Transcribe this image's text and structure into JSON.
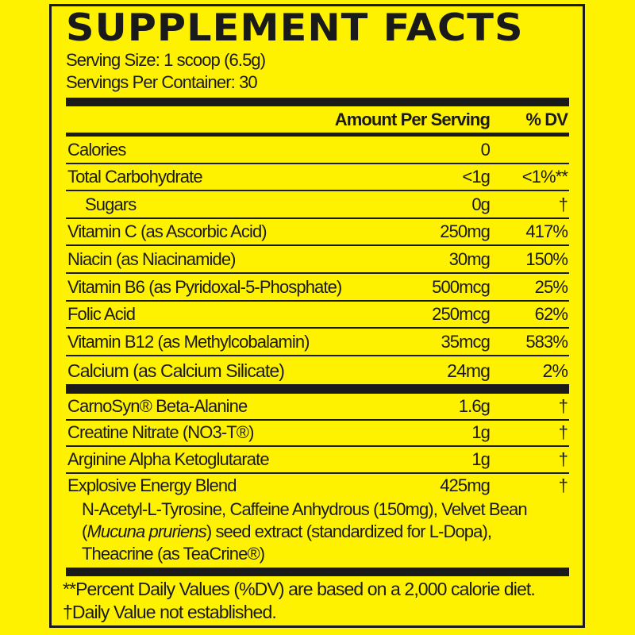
{
  "title": "SUPPLEMENT FACTS",
  "serving_size": "Serving Size: 1 scoop (6.5g)",
  "servings_per_container": "Servings Per Container: 30",
  "header": {
    "amount": "Amount Per Serving",
    "dv": "% DV"
  },
  "nutrients": [
    {
      "name": "Calories",
      "amount": "0",
      "dv": ""
    },
    {
      "name": "Total Carbohydrate",
      "amount": "<1g",
      "dv": "<1%**"
    },
    {
      "name": "Sugars",
      "amount": "0g",
      "dv": "†",
      "indent": true
    },
    {
      "name": "Vitamin C (as Ascorbic Acid)",
      "amount": "250mg",
      "dv": "417%"
    },
    {
      "name": "Niacin (as Niacinamide)",
      "amount": "30mg",
      "dv": "150%"
    },
    {
      "name": "Vitamin B6 (as Pyridoxal-5-Phosphate)",
      "amount": "500mcg",
      "dv": "25%"
    },
    {
      "name": "Folic Acid",
      "amount": "250mcg",
      "dv": "62%"
    },
    {
      "name": "Vitamin B12 (as Methylcobalamin)",
      "amount": "35mcg",
      "dv": "583%"
    },
    {
      "name": "Calcium (as Calcium Silicate)",
      "amount": "24mg",
      "dv": "2%"
    }
  ],
  "ingredients": [
    {
      "name": "CarnoSyn® Beta-Alanine",
      "amount": "1.6g",
      "dv": "†"
    },
    {
      "name": "Creatine Nitrate (NO3-T®)",
      "amount": "1g",
      "dv": "†"
    },
    {
      "name": "Arginine Alpha Ketoglutarate",
      "amount": "1g",
      "dv": "†"
    }
  ],
  "blend": {
    "name": "Explosive Energy Blend",
    "amount": "425mg",
    "dv": "†",
    "line1": "N-Acetyl-L-Tyrosine, Caffeine Anhydrous (150mg), Velvet Bean",
    "line2_italic": "Mucuna pruriens",
    "line2_open": "(",
    "line2_rest": ") seed extract (standardized for L-Dopa),",
    "line3": "Theacrine (as TeaCrine®)"
  },
  "footnotes": [
    "**Percent Daily Values (%DV) are based on a 2,000 calorie diet.",
    "†Daily Value not established."
  ],
  "colors": {
    "background": "#fff200",
    "ink": "#1a1a1a"
  }
}
